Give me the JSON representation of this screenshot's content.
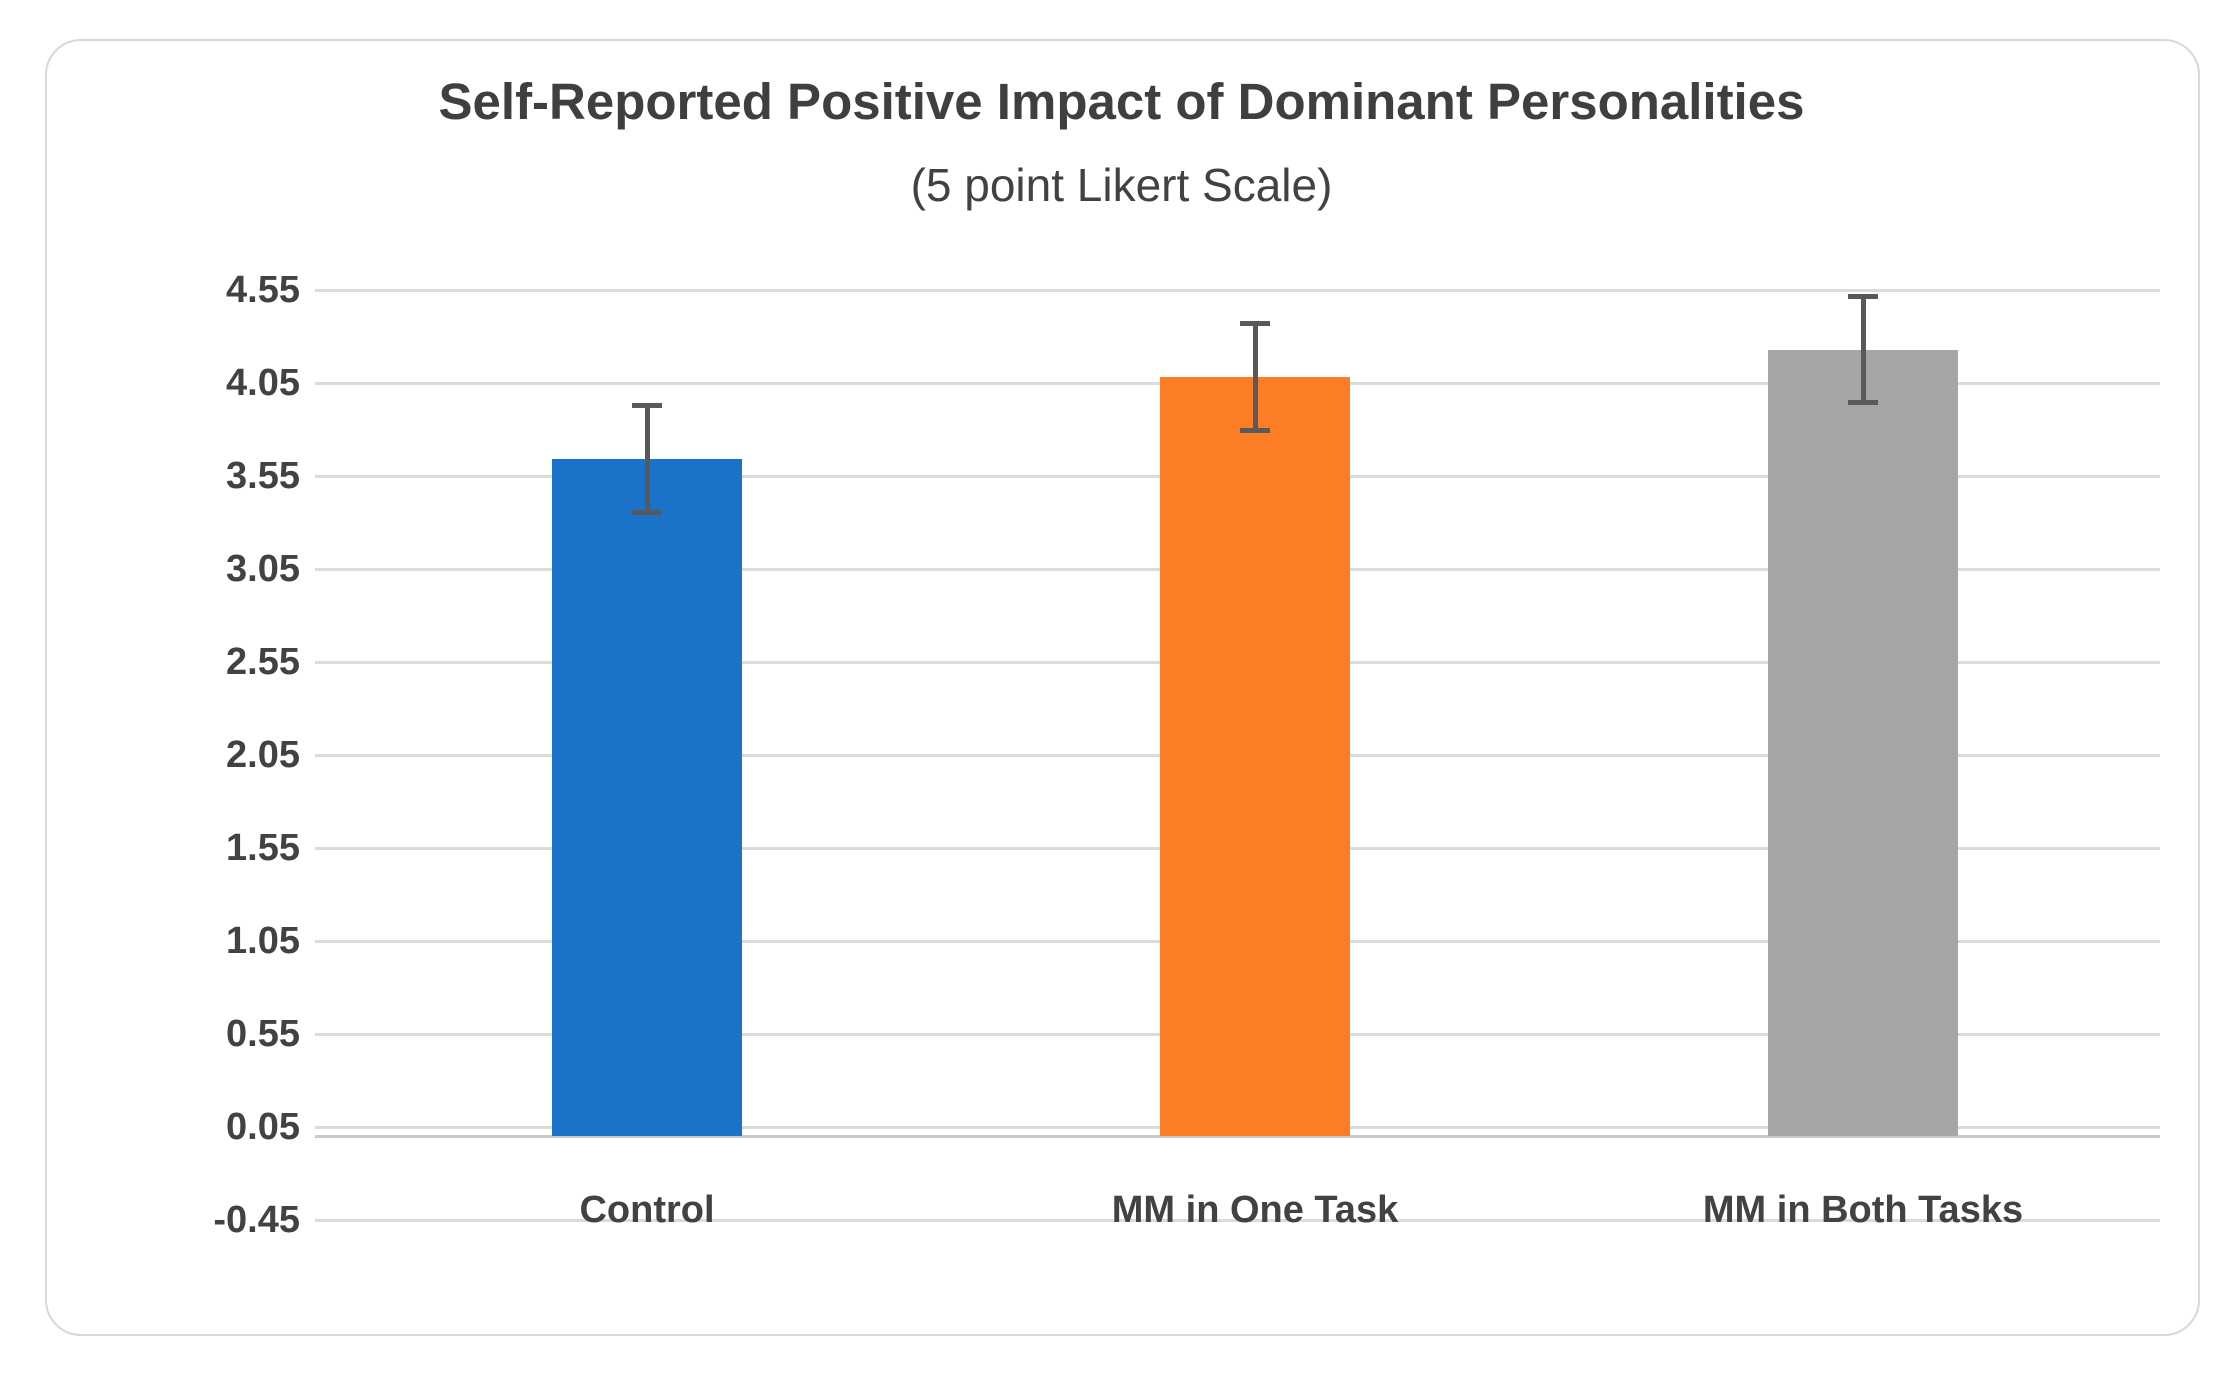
{
  "chart_data": {
    "type": "bar",
    "title": "Self-Reported Positive Impact of Dominant Personalities",
    "subtitle": "(5 point Likert Scale)",
    "categories": [
      "Control",
      "MM in One Task",
      "MM in Both Tasks"
    ],
    "values": [
      3.64,
      4.08,
      4.23
    ],
    "error_bars": [
      0.29,
      0.29,
      0.29
    ],
    "bar_colors": [
      "#1a73c8",
      "#fc7d26",
      "#a6a6a6"
    ],
    "y_tick_labels": [
      "4.55",
      "4.05",
      "3.55",
      "3.05",
      "2.55",
      "2.05",
      "1.55",
      "1.05",
      "0.55",
      "0.05",
      "-0.45"
    ],
    "y_tick_values": [
      4.55,
      4.05,
      3.55,
      3.05,
      2.55,
      2.05,
      1.55,
      1.05,
      0.55,
      0.05,
      -0.45
    ],
    "ylim": [
      -0.45,
      4.55
    ],
    "xlabel": "",
    "ylabel": "",
    "grid": true,
    "legend": "none",
    "styles": {
      "error_bar_color": "#595959",
      "gridline_color": "#dbdbdb",
      "axis_line_color": "#c9c9c9",
      "text_color": "#424242",
      "title_color": "#3f3f3f",
      "card_border_color": "#d8d8d8",
      "background_color": "#ffffff"
    }
  }
}
